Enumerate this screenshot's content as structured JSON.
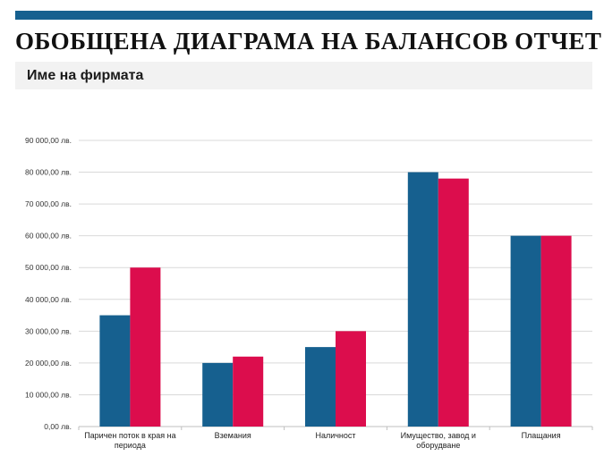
{
  "report": {
    "title": "ОБОБЩЕНА ДИАГРАМА НА БАЛАНСОВ ОТЧЕТ",
    "company_name": "Име на фирмата"
  },
  "colors": {
    "header_bar": "#16608f",
    "series_1": "#16608f",
    "series_2": "#dc0d4d",
    "gridline": "#d9d9d9",
    "band": "#f2f2f2"
  },
  "chart_data": {
    "type": "bar",
    "categories": [
      "Паричен поток в края на периода",
      "Вземания",
      "Наличност",
      "Имущество, завод и оборудване",
      "Плащания"
    ],
    "series": [
      {
        "values": [
          35000,
          20000,
          25000,
          80000,
          60000
        ],
        "color": "#16608f"
      },
      {
        "values": [
          50000,
          22000,
          30000,
          78000,
          60000
        ],
        "color": "#dc0d4d"
      }
    ],
    "ylim": [
      0,
      90000
    ],
    "yticks": [
      0,
      10000,
      20000,
      30000,
      40000,
      50000,
      60000,
      70000,
      80000,
      90000
    ],
    "ytick_labels": [
      "0,00 лв.",
      "10 000,00 лв.",
      "20 000,00 лв.",
      "30 000,00 лв.",
      "40 000,00 лв.",
      "50 000,00 лв.",
      "60 000,00 лв.",
      "70 000,00 лв.",
      "80 000,00 лв.",
      "90 000,00 лв."
    ],
    "grid": true,
    "legend": "none"
  }
}
